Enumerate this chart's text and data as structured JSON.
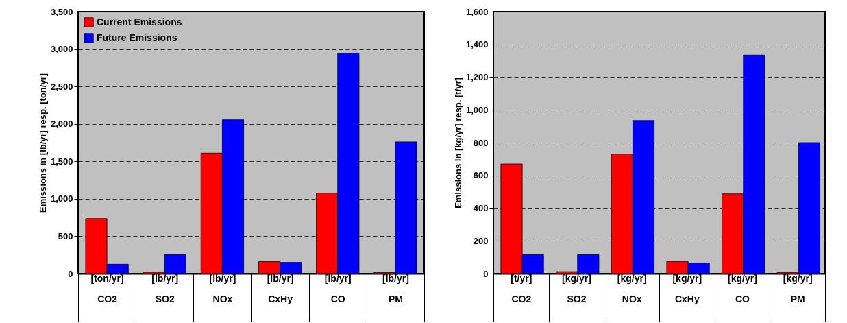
{
  "chart_data": [
    {
      "type": "bar",
      "categories": [
        "[ton/yr]\nCO2",
        "[lb/yr]\nSO2",
        "[lb/yr]\nNOx",
        "[lb/yr]\nCxHy",
        "[lb/yr]\nCO",
        "[lb/yr]\nPM"
      ],
      "series": [
        {
          "name": "Current Emissions",
          "color": "#ff0000",
          "values": [
            735,
            20,
            1610,
            160,
            1075,
            15
          ]
        },
        {
          "name": "Future  Emissions",
          "color": "#0000ff",
          "values": [
            125,
            255,
            2055,
            150,
            2945,
            1760
          ]
        }
      ],
      "ylabel": "Emissions in [lb/yr] resp. [ton/yr]",
      "ylim": [
        0,
        3500
      ],
      "yticks": [
        0,
        500,
        {
          "value": 1000,
          "label": "1,000"
        },
        {
          "value": 1500,
          "label": "1,500"
        },
        {
          "value": 2000,
          "label": "2,000"
        },
        {
          "value": 2500,
          "label": "2,500"
        },
        {
          "value": 3000,
          "label": "3,000"
        },
        {
          "value": 3500,
          "label": "3,500"
        }
      ],
      "grid": "y",
      "legend": "top left"
    },
    {
      "type": "bar",
      "categories": [
        "[t/yr]\nCO2",
        "[kg/yr]\nSO2",
        "[kg/yr]\nNOx",
        "[kg/yr]\nCxHy",
        "[kg/yr]\nCO",
        "[kg/yr]\nPM"
      ],
      "series": [
        {
          "name": "Current Emissions",
          "color": "#ff0000",
          "values": [
            670,
            12,
            730,
            75,
            487,
            8
          ]
        },
        {
          "name": "Future  Emissions",
          "color": "#0000ff",
          "values": [
            115,
            115,
            935,
            65,
            1335,
            800
          ]
        }
      ],
      "ylabel": "Emissions in [kg/yr] resp. [t/yr]",
      "ylim": [
        0,
        1600
      ],
      "yticks": [
        0,
        200,
        400,
        600,
        800,
        {
          "value": 1000,
          "label": "1,000"
        },
        {
          "value": 1200,
          "label": "1,200"
        },
        {
          "value": 1400,
          "label": "1,400"
        },
        {
          "value": 1600,
          "label": "1,600"
        }
      ],
      "grid": "y",
      "legend": "top left"
    }
  ]
}
